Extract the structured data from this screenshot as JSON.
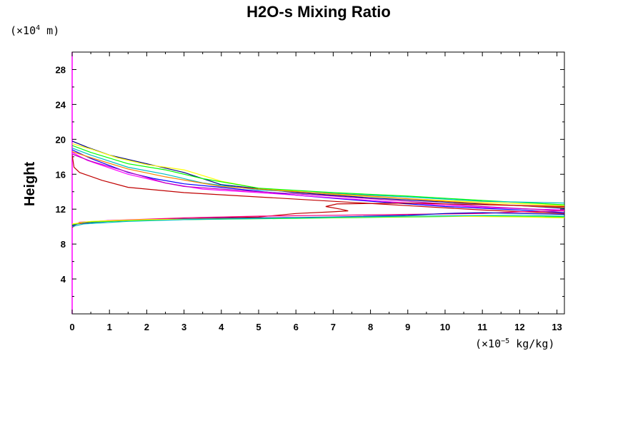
{
  "chart_data": {
    "type": "line",
    "title": "H2O-s Mixing Ratio",
    "ylabel": "Height",
    "xlabel": "",
    "y_unit": {
      "prefix": "(×10",
      "exp": "4",
      "suffix": " m)"
    },
    "x_unit": {
      "prefix": "(×10",
      "exp": "−5",
      "suffix": " kg/kg)"
    },
    "xlim": [
      0,
      13.2
    ],
    "ylim": [
      0,
      30
    ],
    "x_ticks": [
      0,
      1,
      2,
      3,
      4,
      5,
      6,
      7,
      8,
      9,
      10,
      11,
      12,
      13
    ],
    "y_ticks": [
      4,
      8,
      12,
      16,
      20,
      24,
      28
    ],
    "grid": false,
    "legend": "none",
    "series": [
      {
        "color": "#000080",
        "points": [
          [
            0,
            19.8
          ],
          [
            0.4,
            19.1
          ],
          [
            1,
            18.2
          ],
          [
            2,
            17.2
          ],
          [
            3,
            16.2
          ],
          [
            3.5,
            15.5
          ],
          [
            4,
            14.8
          ],
          [
            6,
            13.9
          ],
          [
            8,
            13.3
          ],
          [
            10,
            12.8
          ],
          [
            12,
            12.4
          ],
          [
            13.2,
            12.1
          ]
        ]
      },
      {
        "color": "#ffff00",
        "points": [
          [
            0,
            19.5
          ],
          [
            0.5,
            18.9
          ],
          [
            1.2,
            17.9
          ],
          [
            2,
            17.1
          ],
          [
            3,
            16.5
          ],
          [
            4,
            15.2
          ],
          [
            5,
            14.4
          ],
          [
            7,
            13.7
          ],
          [
            9,
            13.2
          ],
          [
            11,
            12.8
          ],
          [
            13.2,
            12.4
          ]
        ]
      },
      {
        "color": "#00ff00",
        "points": [
          [
            0,
            19.3
          ],
          [
            0.5,
            18.5
          ],
          [
            1.5,
            17.2
          ],
          [
            2.5,
            16.5
          ],
          [
            3.5,
            15.5
          ],
          [
            5,
            14.4
          ],
          [
            7,
            13.9
          ],
          [
            9,
            13.5
          ],
          [
            11,
            13.0
          ],
          [
            13.2,
            12.5
          ]
        ]
      },
      {
        "color": "#00c0c0",
        "points": [
          [
            0,
            19.0
          ],
          [
            0.5,
            18.2
          ],
          [
            1.5,
            16.8
          ],
          [
            2.5,
            16.0
          ],
          [
            3.5,
            15.0
          ],
          [
            5,
            14.2
          ],
          [
            7,
            13.8
          ],
          [
            9,
            13.4
          ],
          [
            11,
            12.9
          ],
          [
            13.2,
            12.7
          ]
        ]
      },
      {
        "color": "#0000ff",
        "points": [
          [
            0,
            18.8
          ],
          [
            0.5,
            17.8
          ],
          [
            1.5,
            16.2
          ],
          [
            2.2,
            15.5
          ],
          [
            3,
            14.9
          ],
          [
            4,
            14.5
          ],
          [
            6,
            13.6
          ],
          [
            8,
            12.9
          ],
          [
            10,
            12.3
          ],
          [
            12,
            11.9
          ],
          [
            13.2,
            11.6
          ]
        ]
      },
      {
        "color": "#ff00ff",
        "points": [
          [
            0,
            18.5
          ],
          [
            0.4,
            17.6
          ],
          [
            1.5,
            16.0
          ],
          [
            2.5,
            15.0
          ],
          [
            3.5,
            14.3
          ],
          [
            5,
            13.9
          ],
          [
            7,
            13.3
          ],
          [
            9,
            12.7
          ],
          [
            11,
            12.2
          ],
          [
            13.2,
            11.9
          ]
        ]
      },
      {
        "color": "#c000c0",
        "points": [
          [
            0,
            18.3
          ],
          [
            0.5,
            17.5
          ],
          [
            1.3,
            16.5
          ],
          [
            2.5,
            15.0
          ],
          [
            3,
            14.6
          ],
          [
            5,
            14.0
          ],
          [
            7,
            13.5
          ],
          [
            9,
            12.9
          ],
          [
            11,
            12.3
          ],
          [
            13.2,
            11.8
          ]
        ]
      },
      {
        "color": "#ff8000",
        "points": [
          [
            0,
            18.6
          ],
          [
            0.5,
            17.9
          ],
          [
            1.5,
            16.6
          ],
          [
            2.5,
            15.7
          ],
          [
            4,
            14.6
          ],
          [
            6,
            14.0
          ],
          [
            8,
            13.5
          ],
          [
            10,
            12.9
          ],
          [
            12,
            12.4
          ],
          [
            13.2,
            12.2
          ]
        ]
      },
      {
        "color": "#c00000",
        "points": [
          [
            0,
            18.2
          ],
          [
            0.05,
            16.8
          ],
          [
            0.2,
            16.2
          ],
          [
            0.8,
            15.3
          ],
          [
            1.5,
            14.5
          ],
          [
            3,
            13.9
          ],
          [
            5,
            13.4
          ],
          [
            7,
            12.9
          ],
          [
            9,
            12.4
          ],
          [
            11,
            11.9
          ],
          [
            13.2,
            11.5
          ]
        ]
      },
      {
        "color": "#c00000",
        "points": [
          [
            0,
            9.9
          ],
          [
            0.1,
            10.3
          ],
          [
            1,
            10.7
          ],
          [
            3,
            10.9
          ],
          [
            5,
            11.1
          ],
          [
            6,
            11.5
          ],
          [
            7,
            11.7
          ],
          [
            7.4,
            11.8
          ],
          [
            7.2,
            12.0
          ],
          [
            6.8,
            12.3
          ],
          [
            7.1,
            12.6
          ],
          [
            9,
            12.7
          ],
          [
            13.2,
            12.3
          ]
        ]
      },
      {
        "color": "#ff0080",
        "points": [
          [
            0,
            10.0
          ],
          [
            0.2,
            10.5
          ],
          [
            1,
            10.7
          ],
          [
            3,
            11.0
          ],
          [
            5,
            11.2
          ],
          [
            7,
            11.3
          ],
          [
            9,
            11.4
          ],
          [
            11,
            11.5
          ],
          [
            12,
            11.7
          ],
          [
            13.2,
            11.8
          ]
        ]
      },
      {
        "color": "#0000c0",
        "points": [
          [
            0,
            10.1
          ],
          [
            0.2,
            10.4
          ],
          [
            1,
            10.6
          ],
          [
            3,
            10.9
          ],
          [
            5,
            11.0
          ],
          [
            7,
            11.1
          ],
          [
            9,
            11.3
          ],
          [
            10,
            11.5
          ],
          [
            11,
            11.6
          ],
          [
            13.2,
            11.4
          ]
        ]
      },
      {
        "color": "#00ff00",
        "points": [
          [
            0,
            10.2
          ],
          [
            0.3,
            10.5
          ],
          [
            1.5,
            10.7
          ],
          [
            3,
            10.8
          ],
          [
            5,
            10.9
          ],
          [
            7,
            11.0
          ],
          [
            9,
            11.1
          ],
          [
            11,
            11.2
          ],
          [
            13.2,
            11.1
          ]
        ]
      },
      {
        "color": "#ffff00",
        "points": [
          [
            0,
            10.3
          ],
          [
            0.5,
            10.6
          ],
          [
            2,
            10.8
          ],
          [
            4,
            10.9
          ],
          [
            6,
            11.0
          ],
          [
            8,
            11.1
          ],
          [
            10,
            11.2
          ],
          [
            12,
            11.1
          ],
          [
            13.2,
            11.0
          ]
        ]
      },
      {
        "color": "#00c0c0",
        "points": [
          [
            0,
            10.0
          ],
          [
            0.3,
            10.3
          ],
          [
            1.5,
            10.6
          ],
          [
            3,
            10.8
          ],
          [
            6,
            11.0
          ],
          [
            9,
            11.2
          ],
          [
            12,
            11.3
          ],
          [
            13.2,
            11.2
          ]
        ]
      }
    ]
  }
}
